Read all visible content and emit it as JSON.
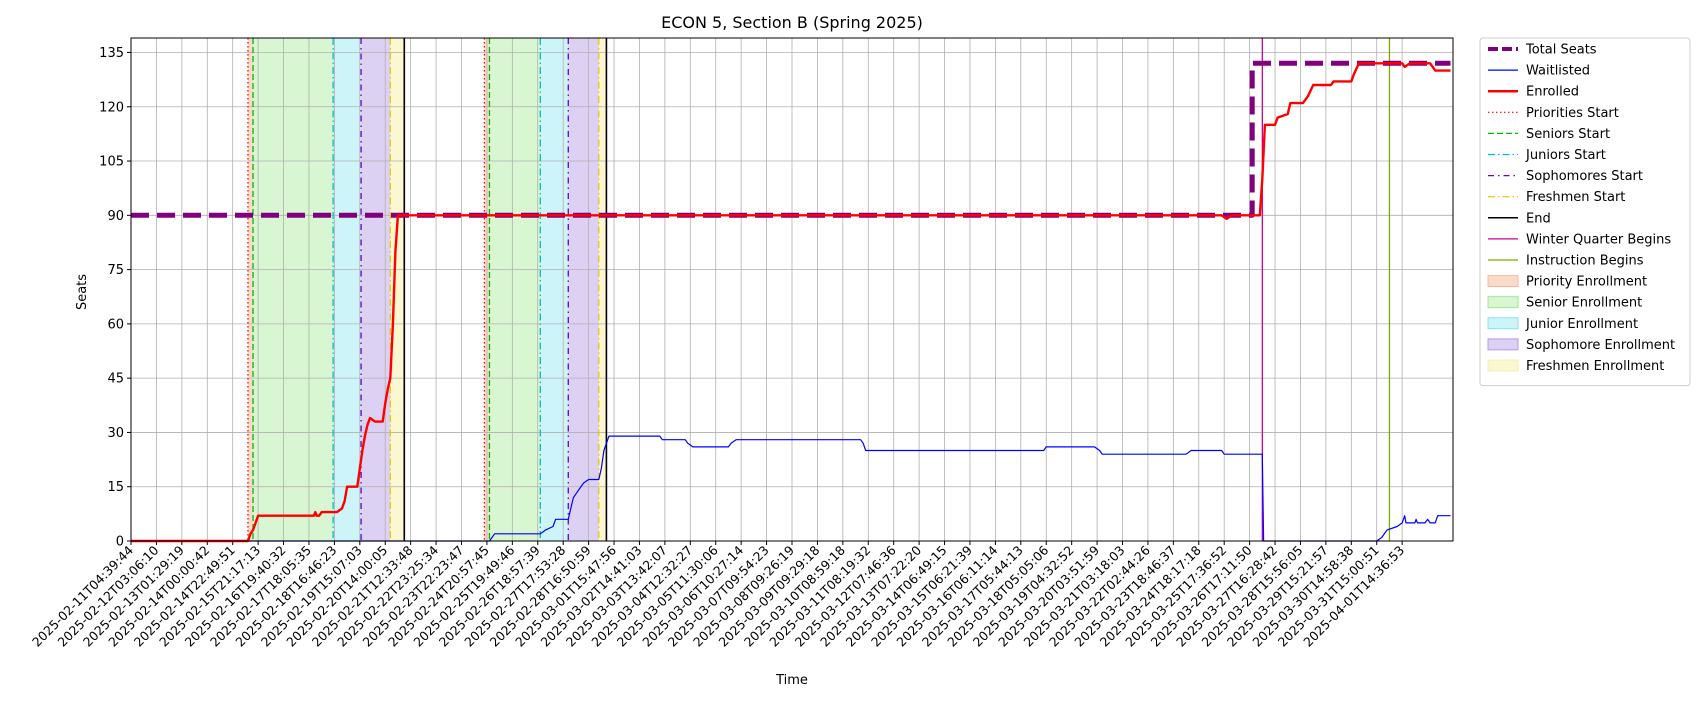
{
  "chart_data": {
    "type": "line",
    "title": "ECON 5, Section B (Spring 2025)",
    "xlabel": "Time",
    "ylabel": "Seats",
    "ylim": [
      0,
      139
    ],
    "xlim": [
      0,
      52
    ],
    "grid": true,
    "legend_position": "outside-right",
    "yticks": [
      0,
      15,
      30,
      45,
      60,
      75,
      90,
      105,
      120,
      135
    ],
    "xtick_labels": [
      "2025-02-11T04:39:44",
      "2025-02-12T03:06:10",
      "2025-02-13T01:29:19",
      "2025-02-14T00:00:42",
      "2025-02-14T22:49:51",
      "2025-02-15T21:17:13",
      "2025-02-16T19:40:32",
      "2025-02-17T18:05:35",
      "2025-02-18T16:46:23",
      "2025-02-19T15:07:03",
      "2025-02-20T14:00:05",
      "2025-02-21T12:33:48",
      "2025-02-22T23:25:34",
      "2025-02-23T22:23:47",
      "2025-02-24T20:57:45",
      "2025-02-25T19:49:46",
      "2025-02-26T18:57:39",
      "2025-02-27T17:53:28",
      "2025-02-28T16:50:59",
      "2025-03-01T15:47:56",
      "2025-03-02T14:41:03",
      "2025-03-03T13:42:07",
      "2025-03-04T12:32:27",
      "2025-03-05T11:30:06",
      "2025-03-06T10:27:14",
      "2025-03-07T09:54:23",
      "2025-03-08T09:26:19",
      "2025-03-09T09:29:18",
      "2025-03-10T08:59:18",
      "2025-03-11T08:19:32",
      "2025-03-12T07:46:36",
      "2025-03-13T07:22:20",
      "2025-03-14T06:49:15",
      "2025-03-15T06:21:39",
      "2025-03-16T06:11:14",
      "2025-03-17T05:44:13",
      "2025-03-18T05:05:06",
      "2025-03-19T04:32:52",
      "2025-03-20T03:51:59",
      "2025-03-21T03:18:03",
      "2025-03-22T02:44:26",
      "2025-03-23T18:46:37",
      "2025-03-24T18:17:18",
      "2025-03-25T17:36:52",
      "2025-03-26T17:11:50",
      "2025-03-27T16:28:42",
      "2025-03-28T15:56:05",
      "2025-03-29T15:21:57",
      "2025-03-30T14:58:38",
      "2025-03-31T15:00:51",
      "2025-04-01T14:36:53"
    ],
    "series": [
      {
        "name": "Total Seats",
        "color": "#800080",
        "style": "dashed-thick",
        "points": [
          [
            0,
            90
          ],
          [
            10.2,
            90
          ],
          [
            10.5,
            90
          ],
          [
            44.1,
            90
          ],
          [
            44.1,
            132
          ],
          [
            51.9,
            132
          ]
        ]
      },
      {
        "name": "Waitlisted",
        "color": "#0000ff",
        "style": "solid",
        "points": [
          [
            0,
            0
          ],
          [
            10.5,
            0
          ],
          [
            14.1,
            0
          ],
          [
            14.1,
            0
          ],
          [
            14.3,
            2
          ],
          [
            16.1,
            2
          ],
          [
            16.3,
            3
          ],
          [
            16.6,
            4
          ],
          [
            16.7,
            6
          ],
          [
            17.2,
            6
          ],
          [
            17.3,
            9
          ],
          [
            17.4,
            12
          ],
          [
            17.6,
            14
          ],
          [
            17.8,
            16
          ],
          [
            18,
            17
          ],
          [
            18.4,
            17
          ],
          [
            18.5,
            20
          ],
          [
            18.6,
            25
          ],
          [
            18.8,
            29
          ],
          [
            20.8,
            29
          ],
          [
            20.9,
            28
          ],
          [
            21.8,
            28
          ],
          [
            21.9,
            27
          ],
          [
            22.1,
            26
          ],
          [
            23.5,
            26
          ],
          [
            23.6,
            27
          ],
          [
            23.8,
            28
          ],
          [
            28.7,
            28
          ],
          [
            28.8,
            27
          ],
          [
            28.9,
            25
          ],
          [
            35.9,
            25
          ],
          [
            36.0,
            26
          ],
          [
            37.9,
            26
          ],
          [
            38.1,
            25
          ],
          [
            38.2,
            24
          ],
          [
            41.5,
            24
          ],
          [
            41.7,
            25
          ],
          [
            42.9,
            25
          ],
          [
            43.0,
            24
          ],
          [
            44.5,
            24
          ],
          [
            44.55,
            0
          ],
          [
            49.0,
            0
          ],
          [
            49.2,
            1
          ],
          [
            49.4,
            3
          ],
          [
            49.8,
            4
          ],
          [
            50.0,
            5
          ],
          [
            50.1,
            7
          ],
          [
            50.15,
            5
          ],
          [
            50.5,
            5
          ],
          [
            50.55,
            6
          ],
          [
            50.6,
            5
          ],
          [
            50.9,
            5
          ],
          [
            51.0,
            6
          ],
          [
            51.1,
            5
          ],
          [
            51.3,
            5
          ],
          [
            51.4,
            7
          ],
          [
            51.9,
            7
          ]
        ]
      },
      {
        "name": "Enrolled",
        "color": "#ff0000",
        "style": "solid-thick",
        "points": [
          [
            0,
            0
          ],
          [
            4.6,
            0
          ],
          [
            4.7,
            2
          ],
          [
            4.8,
            3
          ],
          [
            4.9,
            5
          ],
          [
            5.0,
            7
          ],
          [
            7.2,
            7
          ],
          [
            7.25,
            8
          ],
          [
            7.3,
            7
          ],
          [
            7.4,
            7
          ],
          [
            7.5,
            8
          ],
          [
            8.1,
            8
          ],
          [
            8.3,
            9
          ],
          [
            8.4,
            11
          ],
          [
            8.5,
            15
          ],
          [
            8.9,
            15
          ],
          [
            9.0,
            20
          ],
          [
            9.1,
            25
          ],
          [
            9.2,
            29
          ],
          [
            9.3,
            32
          ],
          [
            9.4,
            34
          ],
          [
            9.6,
            33
          ],
          [
            9.9,
            33
          ],
          [
            10.0,
            38
          ],
          [
            10.1,
            42
          ],
          [
            10.2,
            45
          ],
          [
            10.3,
            60
          ],
          [
            10.4,
            80
          ],
          [
            10.5,
            90
          ],
          [
            42.9,
            90
          ],
          [
            43.1,
            89
          ],
          [
            43.3,
            90
          ],
          [
            44.4,
            90
          ],
          [
            44.5,
            100
          ],
          [
            44.6,
            115
          ],
          [
            45.0,
            115
          ],
          [
            45.1,
            117
          ],
          [
            45.5,
            118
          ],
          [
            45.6,
            121
          ],
          [
            46.1,
            121
          ],
          [
            46.3,
            123
          ],
          [
            46.5,
            126
          ],
          [
            47.2,
            126
          ],
          [
            47.3,
            127
          ],
          [
            48.0,
            127
          ],
          [
            48.1,
            129
          ],
          [
            48.3,
            132
          ],
          [
            50.0,
            132
          ],
          [
            50.1,
            131
          ],
          [
            50.3,
            132
          ],
          [
            51.1,
            132
          ],
          [
            51.2,
            131
          ],
          [
            51.3,
            130
          ],
          [
            51.9,
            130
          ]
        ]
      }
    ],
    "vlines": [
      {
        "name": "Priorities Start",
        "color": "#ff0000",
        "dash": "1.5,2.5",
        "x": [
          4.6,
          13.9
        ]
      },
      {
        "name": "Seniors Start",
        "color": "#00bb00",
        "dash": "6,3",
        "x": [
          4.8,
          14.1
        ]
      },
      {
        "name": "Juniors Start",
        "color": "#00c0c0",
        "dash": "7,3,1.5,3",
        "x": [
          7.95,
          16.1
        ]
      },
      {
        "name": "Sophomores Start",
        "color": "#6600cc",
        "dash": "6,4,1.5,4",
        "x": [
          9.05,
          17.2
        ]
      },
      {
        "name": "Freshmen Start",
        "color": "#e6c800",
        "dash": "7,3,1.5,3",
        "x": [
          10.2,
          18.4
        ]
      },
      {
        "name": "End",
        "color": "#000000",
        "dash": "",
        "x": [
          10.75,
          18.7
        ]
      },
      {
        "name": "Winter Quarter Begins",
        "color": "#cc0099",
        "dash": "",
        "x": [
          44.5
        ]
      },
      {
        "name": "Instruction Begins",
        "color": "#7aaa00",
        "dash": "",
        "x": [
          49.5
        ]
      }
    ],
    "spans": [
      {
        "name": "Priority Enrollment",
        "color": "#f4b08a",
        "opacity": 0.45,
        "ranges": [
          [
            4.6,
            4.8
          ],
          [
            13.9,
            14.1
          ]
        ]
      },
      {
        "name": "Senior Enrollment",
        "color": "#8ee57a",
        "opacity": 0.35,
        "ranges": [
          [
            4.8,
            7.95
          ],
          [
            14.1,
            16.1
          ]
        ]
      },
      {
        "name": "Junior Enrollment",
        "color": "#6fdfea",
        "opacity": 0.35,
        "ranges": [
          [
            7.95,
            9.05
          ],
          [
            16.1,
            17.2
          ]
        ]
      },
      {
        "name": "Sophomore Enrollment",
        "color": "#a98be0",
        "opacity": 0.4,
        "ranges": [
          [
            9.05,
            10.2
          ],
          [
            17.2,
            18.4
          ]
        ]
      },
      {
        "name": "Freshmen Enrollment",
        "color": "#f3ee9a",
        "opacity": 0.45,
        "ranges": [
          [
            10.2,
            10.75
          ],
          [
            18.4,
            18.7
          ]
        ]
      }
    ],
    "legend": [
      {
        "label": "Total Seats",
        "kind": "line",
        "color": "#800080",
        "dash": "10,4",
        "width": 4
      },
      {
        "label": "Waitlisted",
        "kind": "line",
        "color": "#0000ff",
        "dash": "",
        "width": 1.2
      },
      {
        "label": "Enrolled",
        "kind": "line",
        "color": "#ff0000",
        "dash": "",
        "width": 2.5
      },
      {
        "label": "Priorities Start",
        "kind": "line",
        "color": "#ff0000",
        "dash": "1.5,2.5",
        "width": 1.2
      },
      {
        "label": "Seniors Start",
        "kind": "line",
        "color": "#00bb00",
        "dash": "6,3",
        "width": 1.2
      },
      {
        "label": "Juniors Start",
        "kind": "line",
        "color": "#00c0c0",
        "dash": "7,3,1.5,3",
        "width": 1.2
      },
      {
        "label": "Sophomores Start",
        "kind": "line",
        "color": "#6600cc",
        "dash": "6,4,1.5,4",
        "width": 1.2
      },
      {
        "label": "Freshmen Start",
        "kind": "line",
        "color": "#e6c800",
        "dash": "7,3,1.5,3",
        "width": 1.2
      },
      {
        "label": "End",
        "kind": "line",
        "color": "#000000",
        "dash": "",
        "width": 1.5
      },
      {
        "label": "Winter Quarter Begins",
        "kind": "line",
        "color": "#cc0099",
        "dash": "",
        "width": 1.2
      },
      {
        "label": "Instruction Begins",
        "kind": "line",
        "color": "#7aaa00",
        "dash": "",
        "width": 1.2
      },
      {
        "label": "Priority Enrollment",
        "kind": "patch",
        "color": "#f4b08a",
        "opacity": 0.45
      },
      {
        "label": "Senior Enrollment",
        "kind": "patch",
        "color": "#8ee57a",
        "opacity": 0.35
      },
      {
        "label": "Junior Enrollment",
        "kind": "patch",
        "color": "#6fdfea",
        "opacity": 0.35
      },
      {
        "label": "Sophomore Enrollment",
        "kind": "patch",
        "color": "#a98be0",
        "opacity": 0.4
      },
      {
        "label": "Freshmen Enrollment",
        "kind": "patch",
        "color": "#f3ee9a",
        "opacity": 0.45
      }
    ]
  }
}
